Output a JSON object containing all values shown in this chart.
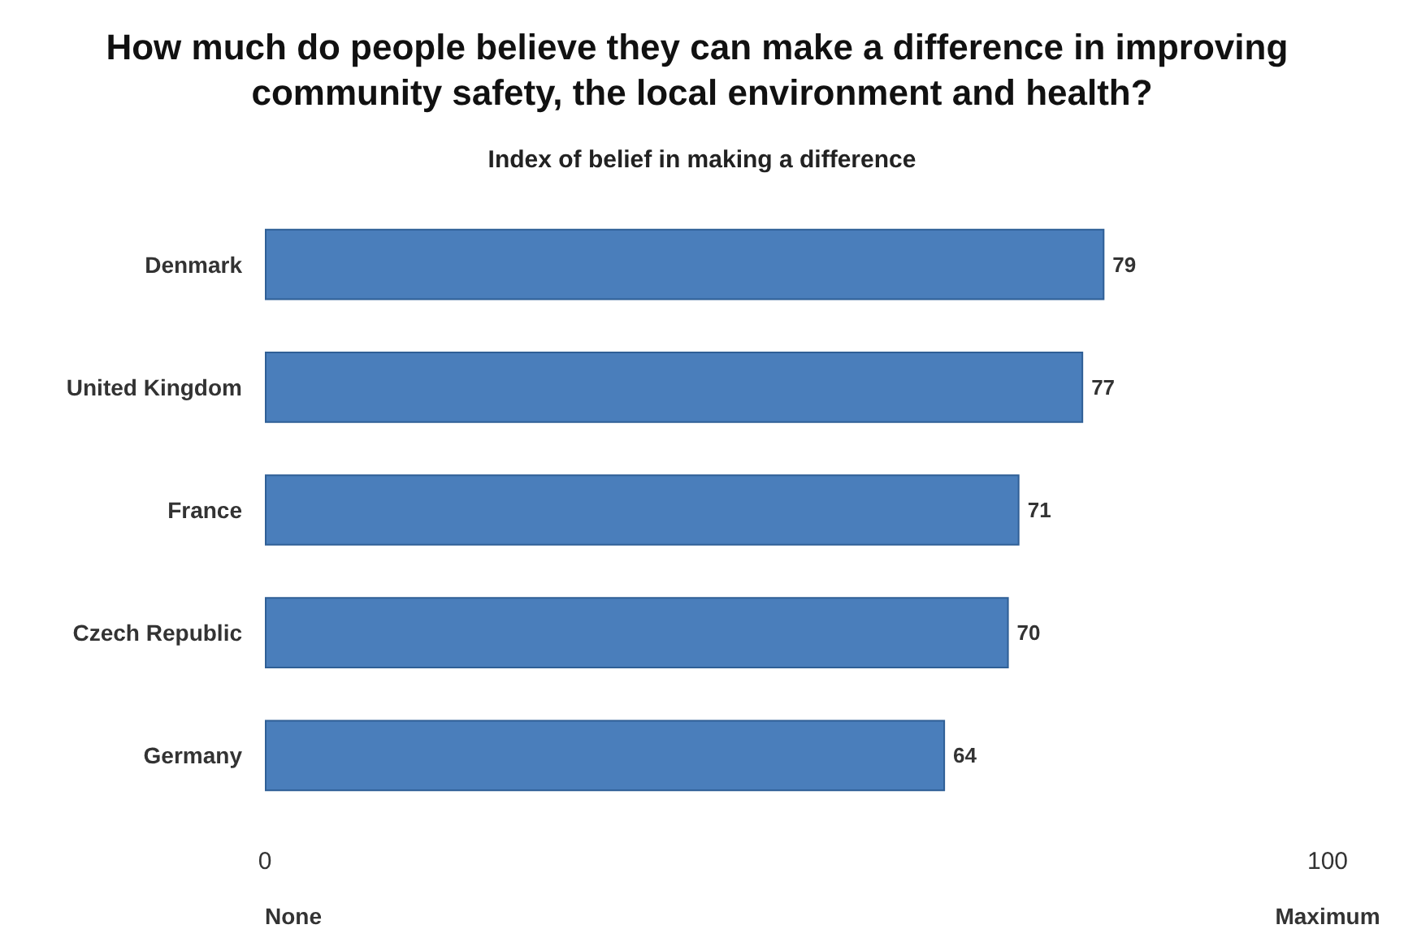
{
  "chart_data": {
    "type": "bar",
    "orientation": "horizontal",
    "title": "How much do people believe they can make a difference in improving community safety, the local environment and health?",
    "subtitle": "Index of belief in making a difference",
    "categories": [
      "Denmark",
      "United Kingdom",
      "France",
      "Czech Republic",
      "Germany"
    ],
    "values": [
      79,
      77,
      71,
      70,
      64
    ],
    "color": "#4a7ebb",
    "xlim": [
      0,
      100
    ],
    "xticks": [
      0,
      100
    ],
    "data_labels": true,
    "grid": false,
    "annotations": [
      "None",
      "Maximum"
    ]
  }
}
